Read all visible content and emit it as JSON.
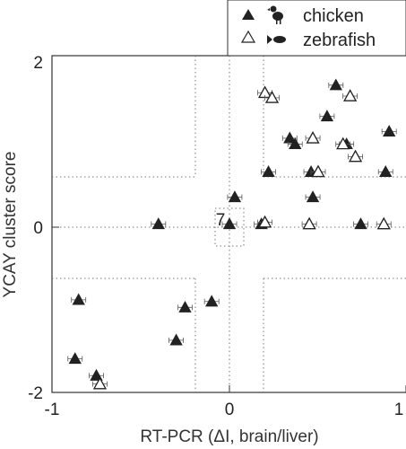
{
  "chart_data": {
    "type": "scatter",
    "xlabel": "RT-PCR (ΔI, brain/liver)",
    "ylabel": "YCAY cluster score",
    "xlim": [
      -1,
      1
    ],
    "ylim": [
      -2,
      2
    ],
    "x_ticks": [
      "-1",
      "0",
      "1"
    ],
    "y_ticks": [
      "2",
      "0",
      "-2"
    ],
    "legend_position": "top-right, outside plot",
    "grid": "dotted zero lines and quadrant guide lines",
    "annotation": "7",
    "series": [
      {
        "name": "chicken",
        "marker": "filled-triangle",
        "points": [
          {
            "x": -0.4,
            "y": 0.0
          },
          {
            "x": 0.0,
            "y": 0.0
          },
          {
            "x": 0.03,
            "y": 0.32
          },
          {
            "x": 0.18,
            "y": 0.0
          },
          {
            "x": -0.85,
            "y": -0.9
          },
          {
            "x": -0.87,
            "y": -1.6
          },
          {
            "x": -0.75,
            "y": -1.8
          },
          {
            "x": -0.25,
            "y": -0.99
          },
          {
            "x": -0.3,
            "y": -1.38
          },
          {
            "x": -0.1,
            "y": -0.92
          },
          {
            "x": 0.22,
            "y": 0.62
          },
          {
            "x": 0.34,
            "y": 1.02
          },
          {
            "x": 0.37,
            "y": 0.95
          },
          {
            "x": 0.46,
            "y": 0.62
          },
          {
            "x": 0.47,
            "y": 0.32
          },
          {
            "x": 0.55,
            "y": 1.28
          },
          {
            "x": 0.6,
            "y": 1.65
          },
          {
            "x": 0.66,
            "y": 0.95
          },
          {
            "x": 0.74,
            "y": 0.0
          },
          {
            "x": 0.88,
            "y": 0.62
          },
          {
            "x": 0.9,
            "y": 1.1
          }
        ]
      },
      {
        "name": "zebrafish",
        "marker": "open-triangle",
        "points": [
          {
            "x": 0.2,
            "y": 1.56
          },
          {
            "x": 0.24,
            "y": 1.5
          },
          {
            "x": 0.2,
            "y": 0.02
          },
          {
            "x": 0.47,
            "y": 1.02
          },
          {
            "x": 0.5,
            "y": 0.62
          },
          {
            "x": 0.45,
            "y": 0.0
          },
          {
            "x": 0.64,
            "y": 0.95
          },
          {
            "x": 0.68,
            "y": 1.52
          },
          {
            "x": 0.71,
            "y": 0.8
          },
          {
            "x": 0.87,
            "y": 0.0
          },
          {
            "x": -0.73,
            "y": -1.9
          }
        ]
      }
    ]
  }
}
